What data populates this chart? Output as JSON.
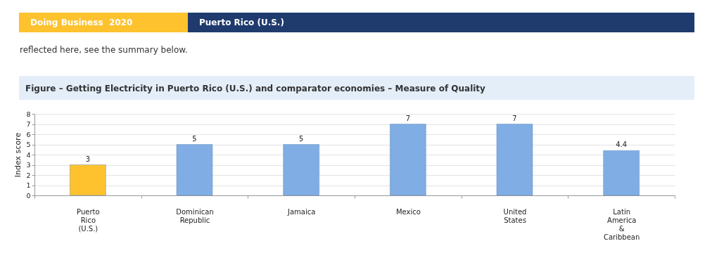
{
  "chart_data": {
    "type": "bar",
    "title": "Figure – Getting Electricity in Puerto Rico (U.S.) and comparator economies – Measure of Quality",
    "annotations": [
      "Doing Business  2020",
      "Puerto Rico (U.S.)",
      "reflected here, see the summary below."
    ],
    "ylabel": "Index score",
    "categories": [
      "Puerto Rico (U.S.)",
      "Dominican Republic",
      "Jamaica",
      "Mexico",
      "United States",
      "Latin America & Caribbean"
    ],
    "values": [
      3,
      5,
      5,
      7,
      7,
      4.4
    ],
    "colors": [
      "#fdc22e",
      "#7fade4",
      "#7fade4",
      "#7fade4",
      "#7fade4",
      "#7fade4"
    ],
    "ylim": [
      0,
      8
    ],
    "yticks": [
      0,
      1,
      2,
      3,
      4,
      5,
      6,
      7,
      8
    ],
    "grid": "y",
    "data_labels": true
  }
}
